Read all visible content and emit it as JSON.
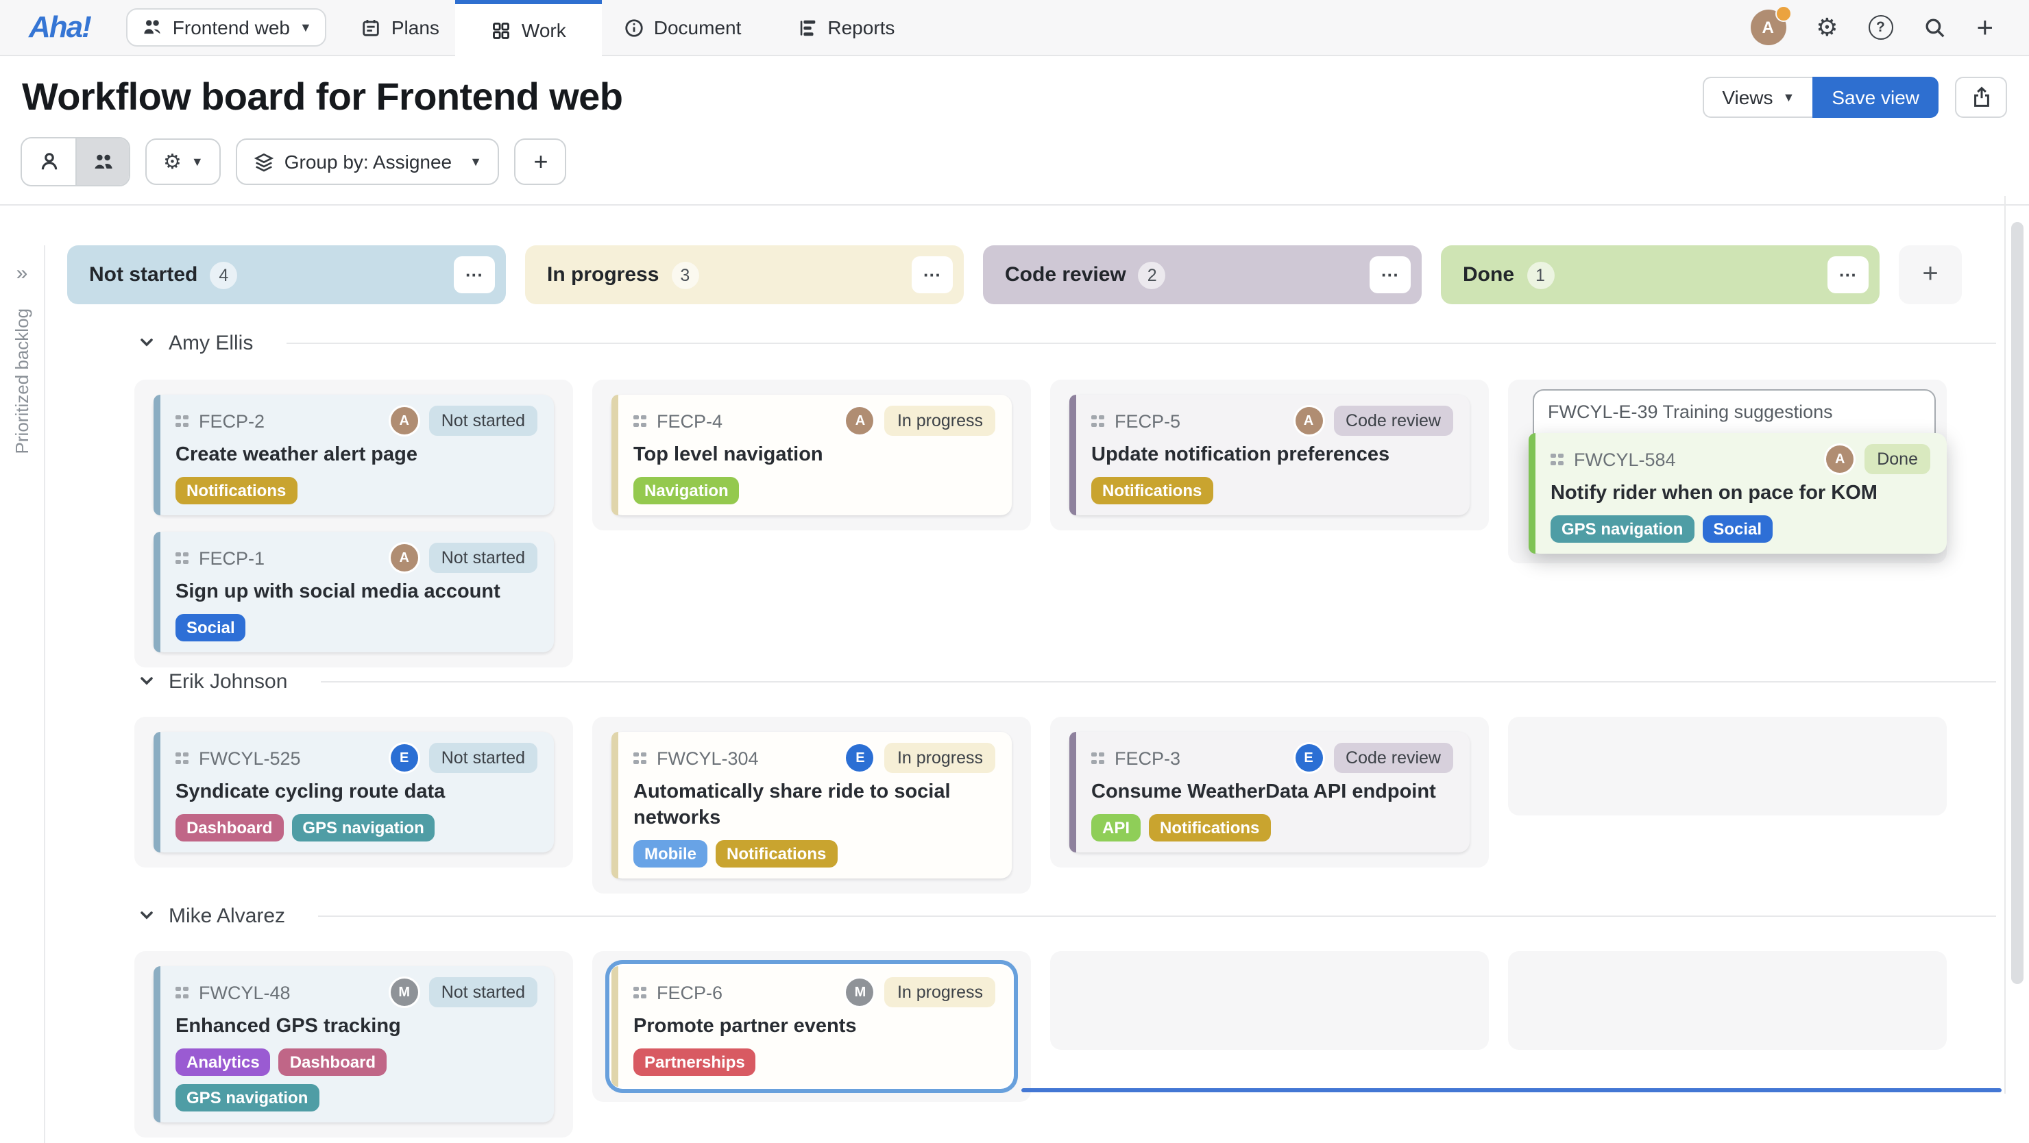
{
  "nav": {
    "logo": "Aha!",
    "workspace": "Frontend web",
    "items": [
      {
        "label": "Plans"
      },
      {
        "label": "Work",
        "active": true
      },
      {
        "label": "Document"
      },
      {
        "label": "Reports"
      }
    ]
  },
  "header": {
    "title": "Workflow board for Frontend web",
    "views_label": "Views",
    "save_label": "Save view"
  },
  "toolbar": {
    "group_by_label": "Group by: Assignee"
  },
  "rail": {
    "label": "Prioritized backlog",
    "expand_icon": "»"
  },
  "board": {
    "more_icon": "●●●",
    "add_column_label": "+",
    "columns": [
      {
        "name": "Not started",
        "count": "4"
      },
      {
        "name": "In progress",
        "count": "3"
      },
      {
        "name": "Code review",
        "count": "2"
      },
      {
        "name": "Done",
        "count": "1"
      }
    ],
    "statuses": {
      "Not started": {
        "header": "#c7dde8",
        "pill": "#cfe1ea",
        "accent": "#8badc2",
        "card": "#edf3f7"
      },
      "In progress": {
        "header": "#f6f0d9",
        "pill": "#f6efd6",
        "accent": "#e0d5ab",
        "card": "#fffefb"
      },
      "Code review": {
        "header": "#cfc8d5",
        "pill": "#d7d0dc",
        "accent": "#8e819d",
        "card": "#f4f3f5"
      },
      "Done": {
        "header": "#cfe4b4",
        "pill": "#d9e9bf",
        "accent": "#7fc355",
        "card": "#f1f8ea"
      }
    },
    "tag_colors": {
      "Notifications": "#c9a42f",
      "Social": "#2e6fd6",
      "Navigation": "#94c94e",
      "GPS navigation": "#4f9da5",
      "Dashboard": "#c06687",
      "Mobile": "#68a3e6",
      "API": "#8fce58",
      "Analytics": "#9a5bd2",
      "Partnerships": "#d85a62"
    },
    "assignees": {
      "Amy Ellis": {
        "initial": "A",
        "color": "#b08d72"
      },
      "Erik Johnson": {
        "initial": "E",
        "color": "#2b6fd4"
      },
      "Mike Alvarez": {
        "initial": "M",
        "color": "#8f9398"
      }
    },
    "groups": [
      {
        "name": "Amy Ellis",
        "cells": [
          {
            "cards": [
              {
                "id": "FECP-2",
                "title": "Create weather alert page",
                "tags": [
                  "Notifications"
                ],
                "status": "Not started"
              },
              {
                "id": "FECP-1",
                "title": "Sign up with social media account",
                "tags": [
                  "Social"
                ],
                "status": "Not started"
              }
            ]
          },
          {
            "cards": [
              {
                "id": "FECP-4",
                "title": "Top level navigation",
                "tags": [
                  "Navigation"
                ],
                "status": "In progress"
              }
            ]
          },
          {
            "cards": [
              {
                "id": "FECP-5",
                "title": "Update notification preferences",
                "tags": [
                  "Notifications"
                ],
                "status": "Code review"
              }
            ]
          },
          {
            "ghost": "FWCYL-E-39 Training suggestions",
            "cards": [
              {
                "id": "FWCYL-584",
                "title": "Notify rider when on pace for KOM",
                "tags": [
                  "GPS navigation",
                  "Social"
                ],
                "status": "Done",
                "dragging": true
              }
            ]
          }
        ]
      },
      {
        "name": "Erik Johnson",
        "cells": [
          {
            "cards": [
              {
                "id": "FWCYL-525",
                "title": "Syndicate cycling route data",
                "tags": [
                  "Dashboard",
                  "GPS navigation"
                ],
                "status": "Not started"
              }
            ]
          },
          {
            "cards": [
              {
                "id": "FWCYL-304",
                "title": "Automatically share ride to social networks",
                "tags": [
                  "Mobile",
                  "Notifications"
                ],
                "status": "In progress"
              }
            ]
          },
          {
            "cards": [
              {
                "id": "FECP-3",
                "title": "Consume WeatherData API endpoint",
                "tags": [
                  "API",
                  "Notifications"
                ],
                "status": "Code review"
              }
            ]
          },
          {
            "empty": true
          }
        ]
      },
      {
        "name": "Mike Alvarez",
        "cells": [
          {
            "cards": [
              {
                "id": "FWCYL-48",
                "title": "Enhanced GPS tracking",
                "tags": [
                  "Analytics",
                  "Dashboard",
                  "GPS navigation"
                ],
                "status": "Not started"
              }
            ]
          },
          {
            "cards": [
              {
                "id": "FECP-6",
                "title": "Promote partner events",
                "tags": [
                  "Partnerships"
                ],
                "status": "In progress",
                "selected": true
              }
            ]
          },
          {
            "empty": true
          },
          {
            "empty": true
          }
        ]
      }
    ]
  }
}
